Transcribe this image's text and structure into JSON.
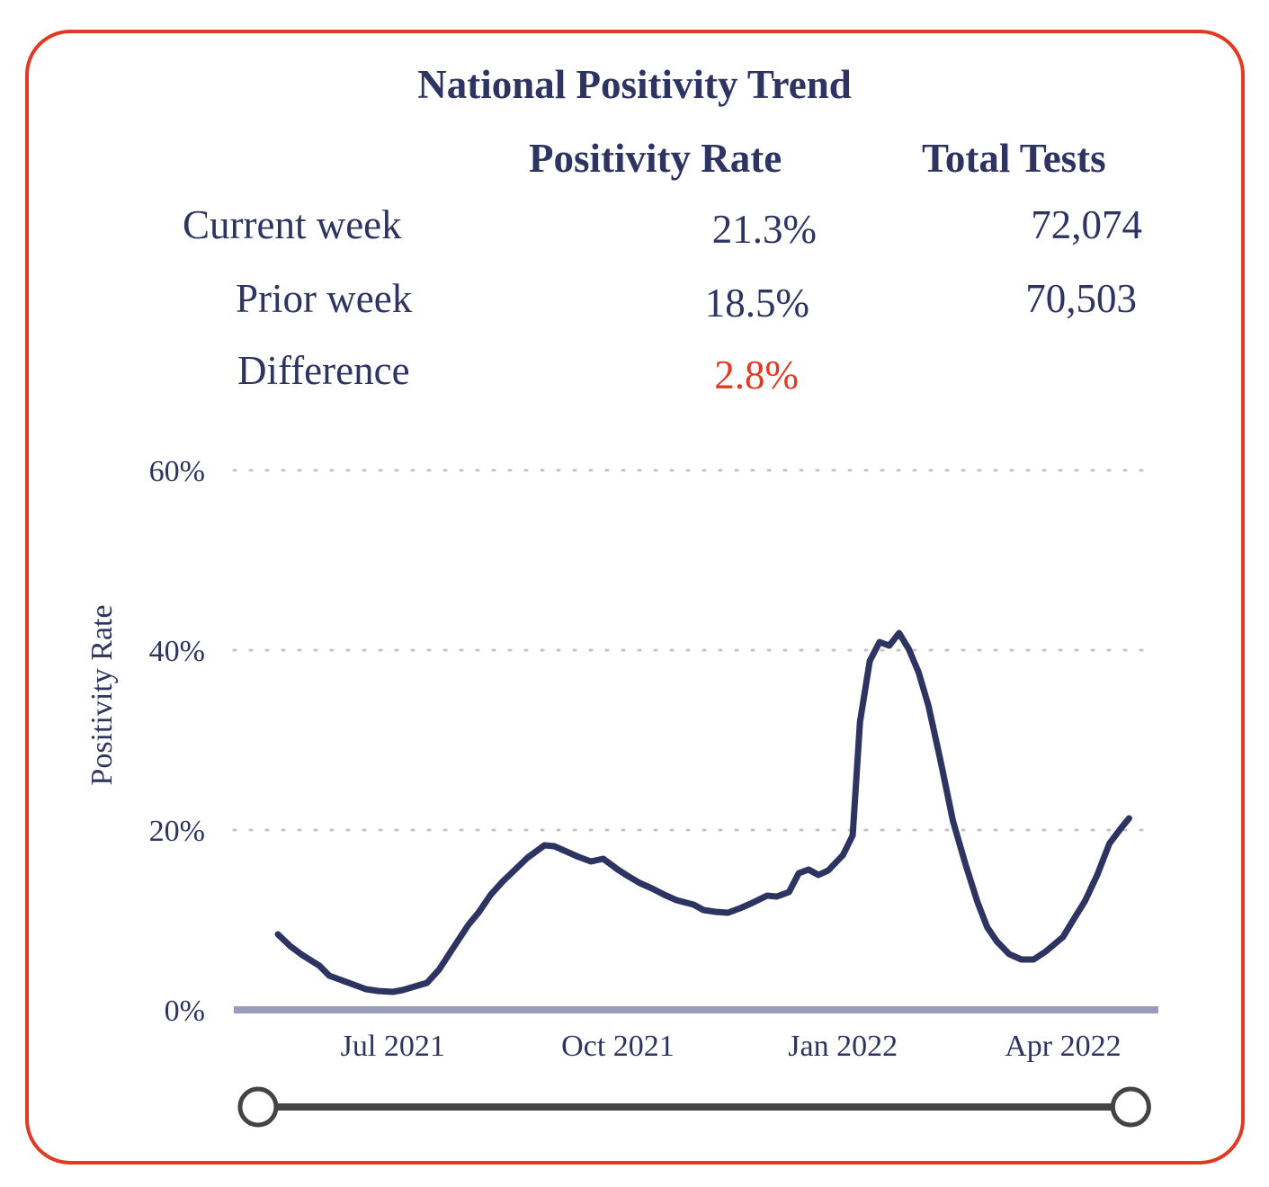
{
  "summary": {
    "title": "National Positivity Trend",
    "columns": [
      "Positivity Rate",
      "Total Tests"
    ],
    "rows": [
      {
        "label": "Current week",
        "rate": "21.3%",
        "tests": "72,074"
      },
      {
        "label": "Prior week",
        "rate": "18.5%",
        "tests": "70,503"
      },
      {
        "label": "Difference",
        "rate": "2.8%",
        "tests": ""
      }
    ]
  },
  "colors": {
    "border": "#e23a22",
    "text": "#2e3461",
    "line": "#2e3461",
    "baseline": "#9a9cbd",
    "highlight": "#e23a22",
    "slider": "#444444"
  },
  "chart_data": {
    "type": "line",
    "xlabel": "",
    "ylabel": "Positivity Rate",
    "ylim": [
      0,
      60
    ],
    "xlim": [
      "2021-04-27",
      "2022-05-10"
    ],
    "y_ticks": [
      0,
      20,
      40,
      60
    ],
    "y_tick_labels": [
      "0%",
      "20%",
      "40%",
      "60%"
    ],
    "x_ticks": [
      "2021-07-01",
      "2021-10-01",
      "2022-01-01",
      "2022-04-01"
    ],
    "x_tick_labels": [
      "Jul 2021",
      "Oct 2021",
      "Jan 2022",
      "Apr 2022"
    ],
    "grid": "horizontal-dotted",
    "series": [
      {
        "points": [
          [
            "2021-05-15",
            8.4
          ],
          [
            "2021-05-20",
            7.1
          ],
          [
            "2021-05-25",
            6.1
          ],
          [
            "2021-06-01",
            4.9
          ],
          [
            "2021-06-05",
            3.8
          ],
          [
            "2021-06-10",
            3.3
          ],
          [
            "2021-06-15",
            2.8
          ],
          [
            "2021-06-20",
            2.3
          ],
          [
            "2021-06-25",
            2.1
          ],
          [
            "2021-07-01",
            2.0
          ],
          [
            "2021-07-05",
            2.2
          ],
          [
            "2021-07-10",
            2.6
          ],
          [
            "2021-07-15",
            3.0
          ],
          [
            "2021-07-20",
            4.5
          ],
          [
            "2021-07-25",
            6.6
          ],
          [
            "2021-08-01",
            9.5
          ],
          [
            "2021-08-05",
            10.8
          ],
          [
            "2021-08-10",
            12.8
          ],
          [
            "2021-08-15",
            14.3
          ],
          [
            "2021-08-20",
            15.6
          ],
          [
            "2021-08-25",
            16.9
          ],
          [
            "2021-09-01",
            18.3
          ],
          [
            "2021-09-05",
            18.2
          ],
          [
            "2021-09-10",
            17.6
          ],
          [
            "2021-09-15",
            17.0
          ],
          [
            "2021-09-20",
            16.5
          ],
          [
            "2021-09-25",
            16.8
          ],
          [
            "2021-10-01",
            15.6
          ],
          [
            "2021-10-05",
            14.9
          ],
          [
            "2021-10-10",
            14.1
          ],
          [
            "2021-10-15",
            13.5
          ],
          [
            "2021-10-20",
            12.8
          ],
          [
            "2021-10-25",
            12.2
          ],
          [
            "2021-11-01",
            11.7
          ],
          [
            "2021-11-05",
            11.1
          ],
          [
            "2021-11-10",
            10.9
          ],
          [
            "2021-11-15",
            10.8
          ],
          [
            "2021-11-20",
            11.3
          ],
          [
            "2021-11-25",
            11.9
          ],
          [
            "2021-12-01",
            12.7
          ],
          [
            "2021-12-05",
            12.6
          ],
          [
            "2021-12-10",
            13.1
          ],
          [
            "2021-12-14",
            15.2
          ],
          [
            "2021-12-18",
            15.6
          ],
          [
            "2021-12-22",
            15.0
          ],
          [
            "2021-12-26",
            15.5
          ],
          [
            "2022-01-01",
            17.2
          ],
          [
            "2022-01-05",
            19.4
          ],
          [
            "2022-01-08",
            32.0
          ],
          [
            "2022-01-12",
            38.8
          ],
          [
            "2022-01-16",
            40.9
          ],
          [
            "2022-01-20",
            40.5
          ],
          [
            "2022-01-24",
            41.9
          ],
          [
            "2022-01-28",
            40.1
          ],
          [
            "2022-02-01",
            37.5
          ],
          [
            "2022-02-05",
            33.8
          ],
          [
            "2022-02-10",
            27.6
          ],
          [
            "2022-02-15",
            21.0
          ],
          [
            "2022-02-20",
            16.3
          ],
          [
            "2022-02-25",
            12.0
          ],
          [
            "2022-03-01",
            9.2
          ],
          [
            "2022-03-05",
            7.6
          ],
          [
            "2022-03-10",
            6.2
          ],
          [
            "2022-03-15",
            5.6
          ],
          [
            "2022-03-20",
            5.6
          ],
          [
            "2022-03-25",
            6.5
          ],
          [
            "2022-04-01",
            8.1
          ],
          [
            "2022-04-05",
            9.9
          ],
          [
            "2022-04-10",
            12.1
          ],
          [
            "2022-04-15",
            15.0
          ],
          [
            "2022-04-20",
            18.5
          ],
          [
            "2022-04-25",
            20.3
          ],
          [
            "2022-04-28",
            21.3
          ]
        ]
      }
    ]
  }
}
